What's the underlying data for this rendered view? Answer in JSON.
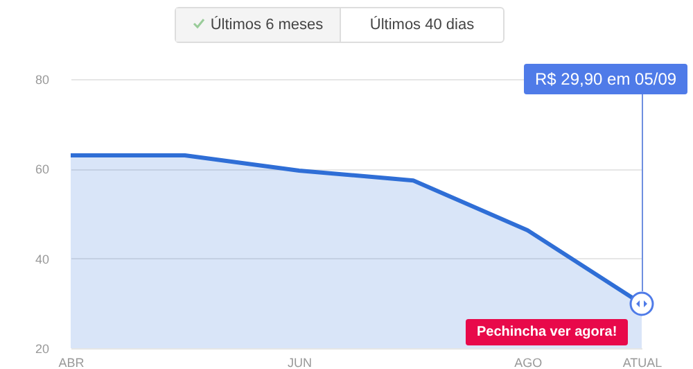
{
  "chart_data": {
    "type": "area",
    "categories": [
      "ABR",
      null,
      "JUN",
      null,
      "AGO",
      "ATUAL"
    ],
    "series": [
      {
        "color": "#2f6ed6",
        "values": [
          63,
          63,
          59.6,
          57.4,
          46.3,
          29.9
        ]
      }
    ],
    "ylim": [
      20,
      80
    ],
    "yticks": [
      20,
      40,
      60,
      80
    ],
    "grid": "y",
    "annotations": [
      "Últimos 6 meses",
      "Últimos 40 dias",
      "R$ 29,90 em 05/09",
      {
        "text": "Pechincha ver agora!",
        "x": "ATUAL",
        "y": 29.9
      }
    ]
  }
}
